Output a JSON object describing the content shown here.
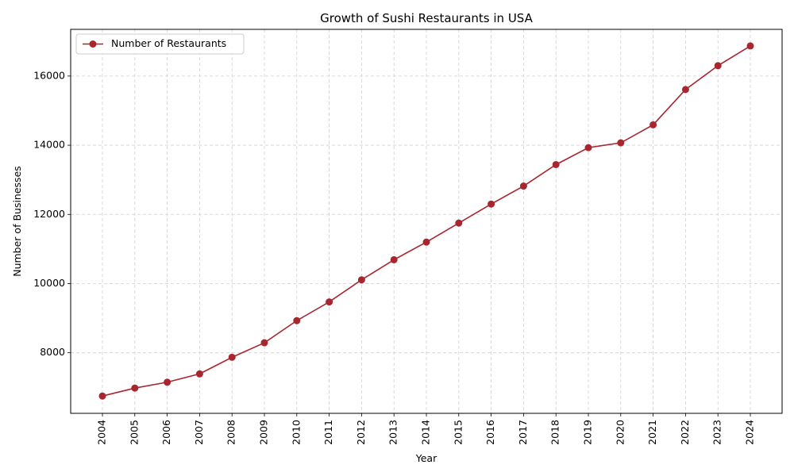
{
  "chart_data": {
    "type": "line",
    "title": "Growth of Sushi Restaurants in USA",
    "xlabel": "Year",
    "ylabel": "Number of Businesses",
    "x": [
      "2004",
      "2005",
      "2006",
      "2007",
      "2008",
      "2009",
      "2010",
      "2011",
      "2012",
      "2013",
      "2014",
      "2015",
      "2016",
      "2017",
      "2018",
      "2019",
      "2020",
      "2021",
      "2022",
      "2023",
      "2024"
    ],
    "series": [
      {
        "name": "Number of Restaurants",
        "color": "#a8272f",
        "values": [
          6750,
          6980,
          7150,
          7390,
          7870,
          8290,
          8930,
          9470,
          10110,
          10690,
          11200,
          11750,
          12300,
          12820,
          13440,
          13930,
          14070,
          14590,
          15610,
          16300,
          16870
        ]
      }
    ],
    "yticks": [
      8000,
      10000,
      12000,
      14000,
      16000
    ],
    "ylim": [
      6250,
      17350
    ],
    "grid": true,
    "legend_position": "top-left"
  }
}
